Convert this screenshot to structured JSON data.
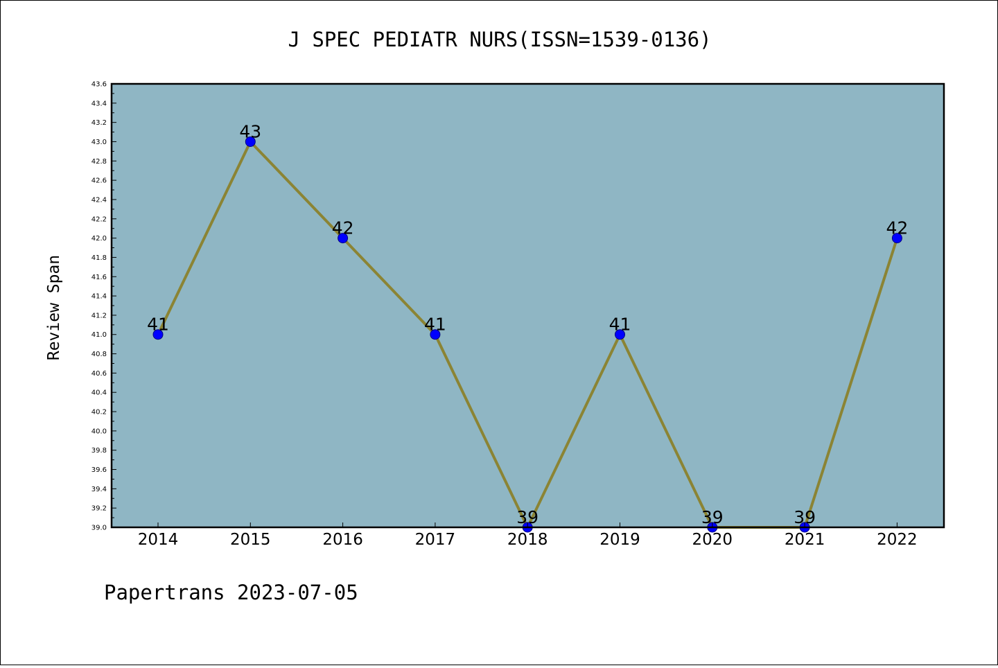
{
  "chart_data": {
    "type": "line",
    "title": "J SPEC PEDIATR NURS(ISSN=1539-0136)",
    "xlabel": "",
    "ylabel": "Review Span",
    "categories": [
      "2014",
      "2015",
      "2016",
      "2017",
      "2018",
      "2019",
      "2020",
      "2021",
      "2022"
    ],
    "series": [
      {
        "values": [
          41,
          43,
          42,
          41,
          39,
          41,
          39,
          39,
          42
        ]
      }
    ],
    "data_labels": [
      "41",
      "43",
      "42",
      "41",
      "39",
      "41",
      "39",
      "39",
      "42"
    ],
    "ylim": [
      39.0,
      43.6
    ],
    "yticks": [
      "39.0",
      "39.2",
      "39.4",
      "39.6",
      "39.8",
      "40.0",
      "40.2",
      "40.4",
      "40.6",
      "40.8",
      "41.0",
      "41.2",
      "41.4",
      "41.6",
      "41.8",
      "42.0",
      "42.2",
      "42.4",
      "42.6",
      "42.8",
      "43.0",
      "43.2",
      "43.4",
      "43.6"
    ],
    "grid": false,
    "legend": "none",
    "colors": {
      "plot_background": "#8fb6c4",
      "line": "#8b8434",
      "marker_fill": "#0000ff",
      "marker_edge": "#000080"
    }
  },
  "footer": {
    "text": "Papertrans 2023-07-05"
  }
}
